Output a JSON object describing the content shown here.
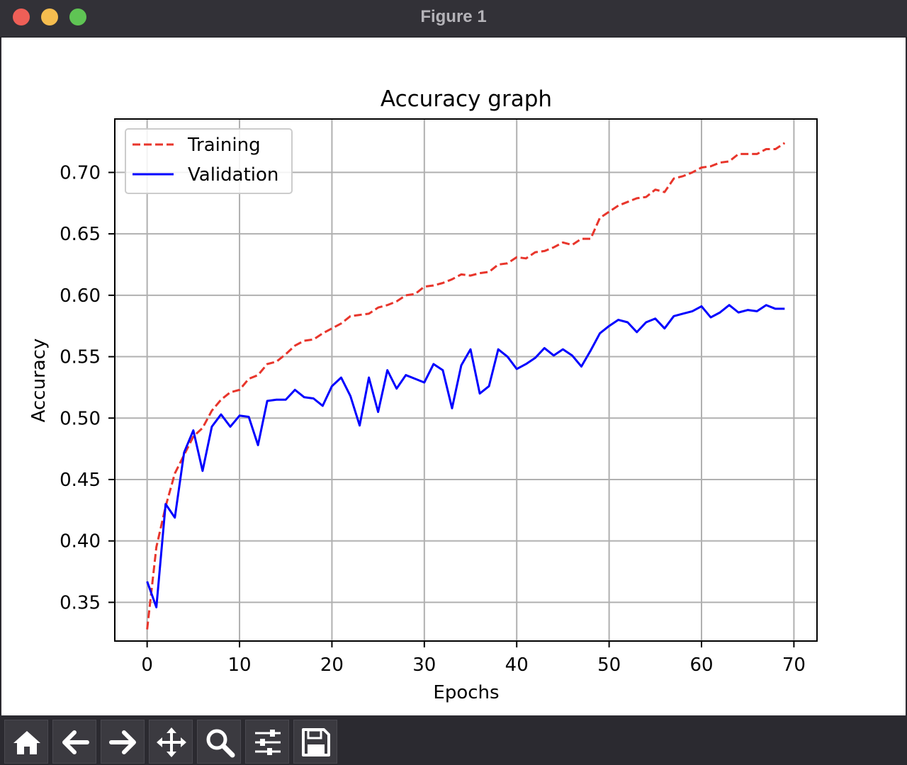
{
  "window": {
    "title": "Figure 1"
  },
  "toolbar": {
    "buttons": [
      {
        "name": "home-button",
        "icon": "home-icon"
      },
      {
        "name": "back-button",
        "icon": "arrow-left-icon"
      },
      {
        "name": "forward-button",
        "icon": "arrow-right-icon"
      },
      {
        "name": "pan-button",
        "icon": "move-icon"
      },
      {
        "name": "zoom-button",
        "icon": "magnifier-icon"
      },
      {
        "name": "configure-subplots-button",
        "icon": "sliders-icon"
      },
      {
        "name": "save-button",
        "icon": "floppy-disk-icon"
      }
    ]
  },
  "chart_data": {
    "type": "line",
    "title": "Accuracy graph",
    "xlabel": "Epochs",
    "ylabel": "Accuracy",
    "xlim": [
      -3.5,
      72.5
    ],
    "ylim": [
      0.3185,
      0.7435
    ],
    "xticks": [
      0,
      10,
      20,
      30,
      40,
      50,
      60,
      70
    ],
    "xtick_labels": [
      "0",
      "10",
      "20",
      "30",
      "40",
      "50",
      "60",
      "70"
    ],
    "yticks": [
      0.35,
      0.4,
      0.45,
      0.5,
      0.55,
      0.6,
      0.65,
      0.7
    ],
    "ytick_labels": [
      "0.35",
      "0.40",
      "0.45",
      "0.50",
      "0.55",
      "0.60",
      "0.65",
      "0.70"
    ],
    "grid": true,
    "legend": "upper left",
    "colors": {
      "training": "#e8352b",
      "validation": "#0000ff"
    },
    "series": [
      {
        "name": "Training",
        "style": "dashed",
        "values": [
          0.328,
          0.395,
          0.428,
          0.455,
          0.47,
          0.485,
          0.492,
          0.506,
          0.515,
          0.521,
          0.523,
          0.532,
          0.535,
          0.544,
          0.546,
          0.552,
          0.559,
          0.563,
          0.564,
          0.569,
          0.573,
          0.577,
          0.583,
          0.584,
          0.585,
          0.59,
          0.592,
          0.595,
          0.6,
          0.601,
          0.607,
          0.608,
          0.61,
          0.613,
          0.617,
          0.616,
          0.618,
          0.619,
          0.625,
          0.626,
          0.631,
          0.63,
          0.635,
          0.636,
          0.639,
          0.643,
          0.641,
          0.646,
          0.646,
          0.663,
          0.668,
          0.673,
          0.676,
          0.679,
          0.68,
          0.686,
          0.684,
          0.695,
          0.697,
          0.7,
          0.704,
          0.705,
          0.708,
          0.709,
          0.715,
          0.715,
          0.715,
          0.719,
          0.719,
          0.724
        ]
      },
      {
        "name": "Validation",
        "style": "solid",
        "values": [
          0.367,
          0.346,
          0.43,
          0.419,
          0.472,
          0.49,
          0.457,
          0.493,
          0.503,
          0.493,
          0.502,
          0.501,
          0.478,
          0.514,
          0.515,
          0.515,
          0.523,
          0.517,
          0.516,
          0.51,
          0.526,
          0.533,
          0.518,
          0.494,
          0.533,
          0.505,
          0.539,
          0.524,
          0.535,
          0.532,
          0.529,
          0.544,
          0.539,
          0.508,
          0.543,
          0.556,
          0.52,
          0.526,
          0.556,
          0.55,
          0.54,
          0.544,
          0.549,
          0.557,
          0.551,
          0.556,
          0.551,
          0.542,
          0.555,
          0.569,
          0.575,
          0.58,
          0.578,
          0.57,
          0.578,
          0.581,
          0.573,
          0.583,
          0.585,
          0.587,
          0.591,
          0.582,
          0.586,
          0.592,
          0.586,
          0.588,
          0.587,
          0.592,
          0.589,
          0.589
        ]
      }
    ]
  }
}
